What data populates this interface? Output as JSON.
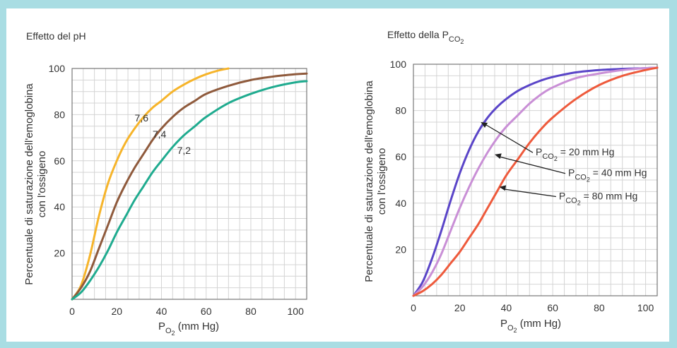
{
  "chart_data": [
    {
      "type": "line",
      "title": "Effetto del pH",
      "xlabel": "P",
      "xlabel_sub": "O",
      "xlabel_sub2": "2",
      "xlabel_unit": " (mm Hg)",
      "ylabel_line1": "Percentuale di saturazione dell'emoglobina",
      "ylabel_line2": "con l'ossigeno",
      "xlim": [
        0,
        105
      ],
      "ylim": [
        0,
        100
      ],
      "xticks": [
        0,
        20,
        40,
        60,
        80,
        100
      ],
      "yticks": [
        20,
        40,
        60,
        80,
        100
      ],
      "x_tick_labels": [
        "0",
        "20",
        "40",
        "60",
        "80",
        "100"
      ],
      "y_tick_labels": [
        "20",
        "40",
        "60",
        "80",
        "100"
      ],
      "grid": true,
      "series": [
        {
          "name": "7,6",
          "color": "#f6b42a",
          "x": [
            0,
            4,
            8,
            12,
            16,
            20,
            24,
            28,
            32,
            36,
            40,
            45,
            50,
            55,
            60,
            65,
            70
          ],
          "y": [
            0,
            6,
            19,
            36,
            50,
            60,
            68,
            74,
            79,
            83,
            86,
            90,
            93,
            95.5,
            97.5,
            99,
            100
          ]
        },
        {
          "name": "7,4",
          "color": "#8f5a3c",
          "x": [
            0,
            4,
            8,
            12,
            16,
            20,
            24,
            28,
            32,
            36,
            40,
            45,
            50,
            55,
            60,
            70,
            80,
            90,
            100,
            105
          ],
          "y": [
            0,
            5,
            12,
            22,
            32,
            42,
            50,
            57,
            63,
            69,
            74,
            79,
            83,
            86,
            89,
            92.5,
            95,
            96.5,
            97.5,
            97.8
          ]
        },
        {
          "name": "7,2",
          "color": "#1fab8f",
          "x": [
            0,
            4,
            8,
            12,
            16,
            20,
            24,
            28,
            32,
            36,
            40,
            45,
            50,
            55,
            60,
            70,
            80,
            90,
            100,
            105
          ],
          "y": [
            0,
            3,
            8,
            14,
            21,
            29,
            36,
            43,
            49,
            55,
            60,
            66,
            71,
            75,
            79,
            85,
            89,
            92,
            94,
            94.5
          ]
        }
      ],
      "annotations": [
        {
          "text": "7,6",
          "x": 28,
          "y": 77
        },
        {
          "text": "7,4",
          "x": 36,
          "y": 70
        },
        {
          "text": "7,2",
          "x": 47,
          "y": 63
        }
      ]
    },
    {
      "type": "line",
      "title": "Effetto della P",
      "title_sub": "CO",
      "title_sub2": "2",
      "xlabel": "P",
      "xlabel_sub": "O",
      "xlabel_sub2": "2",
      "xlabel_unit": " (mm Hg)",
      "ylabel_line1": "Percentuale di saturazione dell'emoglobina",
      "ylabel_line2": "con l'ossigeno",
      "xlim": [
        0,
        105
      ],
      "ylim": [
        0,
        100
      ],
      "xticks": [
        0,
        20,
        40,
        60,
        80,
        100
      ],
      "yticks": [
        20,
        40,
        60,
        80,
        100
      ],
      "x_tick_labels": [
        "0",
        "20",
        "40",
        "60",
        "80",
        "100"
      ],
      "y_tick_labels": [
        "20",
        "40",
        "60",
        "80",
        "100"
      ],
      "grid": true,
      "series": [
        {
          "name": "PCO2 = 20 mm Hg",
          "color": "#5a45c8",
          "x": [
            0,
            4,
            8,
            12,
            16,
            20,
            24,
            28,
            32,
            36,
            40,
            45,
            50,
            55,
            60,
            70,
            80,
            90,
            100,
            105
          ],
          "y": [
            0,
            6,
            16,
            28,
            41,
            53,
            63,
            71,
            77,
            81.5,
            85,
            88.5,
            91,
            93,
            94.5,
            96.5,
            97.5,
            98,
            98.3,
            98.5
          ]
        },
        {
          "name": "PCO2 = 40 mm Hg",
          "color": "#c98fd6",
          "x": [
            0,
            4,
            8,
            12,
            16,
            20,
            24,
            28,
            32,
            36,
            40,
            45,
            50,
            55,
            60,
            70,
            80,
            90,
            100,
            105
          ],
          "y": [
            0,
            4,
            10,
            18,
            28,
            38,
            47,
            55,
            62,
            68,
            73,
            78,
            83,
            87,
            90,
            94,
            96,
            97.5,
            98.3,
            98.5
          ]
        },
        {
          "name": "PCO2 = 80 mm Hg",
          "color": "#ee5a3c",
          "x": [
            0,
            4,
            8,
            12,
            16,
            20,
            24,
            28,
            32,
            36,
            40,
            45,
            50,
            55,
            60,
            70,
            80,
            90,
            100,
            105
          ],
          "y": [
            0,
            2,
            5,
            9,
            14,
            19,
            25,
            31,
            38,
            45,
            52,
            59,
            66,
            72,
            77,
            85,
            91,
            95,
            97.5,
            98.5
          ]
        }
      ],
      "annotations": [
        {
          "text_main": "P",
          "text_sub": "CO",
          "text_sub2": "2",
          "text_rest": " = 20 mm Hg",
          "x": 35,
          "y": 60
        },
        {
          "text_main": "P",
          "text_sub": "CO",
          "text_sub2": "2",
          "text_rest": " = 40 mm Hg",
          "x": 49,
          "y": 51
        },
        {
          "text_main": "P",
          "text_sub": "CO",
          "text_sub2": "2",
          "text_rest": " = 80 mm Hg",
          "x": 45,
          "y": 41
        }
      ]
    }
  ]
}
